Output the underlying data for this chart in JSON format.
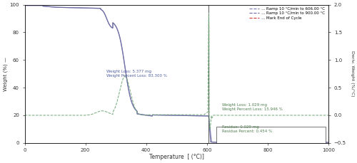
{
  "xlim": [
    0,
    1000
  ],
  "ylim_left": [
    0,
    100
  ],
  "ylim_right": [
    -0.5,
    2.0
  ],
  "xlabel": "Temperature  [ (°C)]",
  "ylabel_left": "Weight (%) —",
  "ylabel_right": "Deriv. Weight (%/°C)",
  "legend": [
    {
      "label": "... Ramp 10 °C/min to 606.00 °C",
      "color": "#7878b0"
    },
    {
      "label": "... Ramp 10 °C/min to 900.00 °C",
      "color": "#6868a0"
    },
    {
      "label": "... Mark End of Cycle",
      "color": "#cc3333"
    }
  ],
  "ann1_text": "Weight Loss: 5.377 mg\nWeight Percent Loss: 83.300 %",
  "ann1_x": 270,
  "ann1_y": 50,
  "ann2_text": "Weight Loss: 1.029 mg\nWeight Percent Loss: 15.946 %",
  "ann2_x": 650,
  "ann2_y": 26,
  "ann3_text": "Residue: 0.029 mg\nResidue Percent: 0.454 %",
  "ann3_x": 650,
  "ann3_y": 10,
  "vline_x": 606,
  "bg_color": "#ffffff",
  "tga_color1": "#8888b8",
  "tga_color2": "#6868a0",
  "dtga_color": "#70a878"
}
